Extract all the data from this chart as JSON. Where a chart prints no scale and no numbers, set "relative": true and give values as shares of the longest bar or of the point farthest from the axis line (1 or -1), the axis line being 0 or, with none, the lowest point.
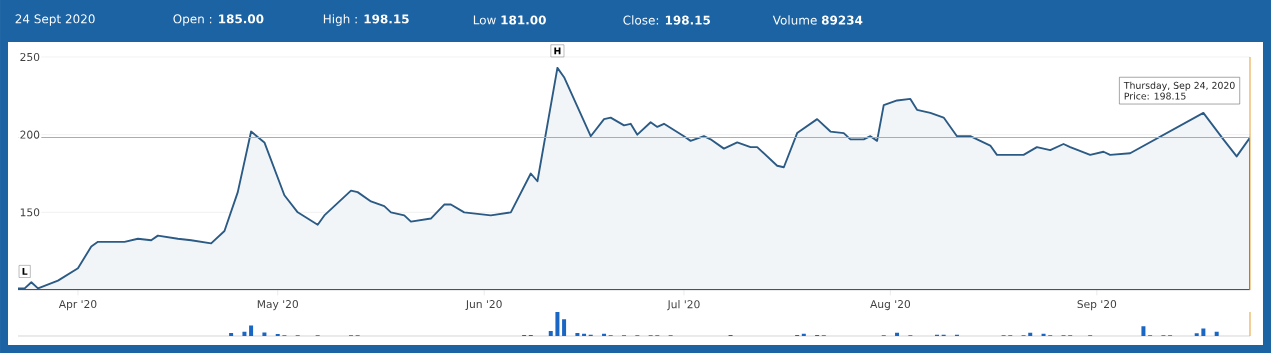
{
  "chart_data": [
    {
      "type": "area",
      "title": "24 Sept 2020",
      "annotations": [
        "Open : **185.00**",
        "High : **198.15**",
        "Low **181.00**",
        "Close: **198.15**",
        "Volume **89234**",
        {
          "text": "L",
          "x": "2020-03-24",
          "y": 101
        },
        {
          "text": "H",
          "x": "2020-06-12",
          "y": 243
        },
        "Thursday, Sep 24, 2020",
        "Price: 198.15"
      ],
      "x": [
        "2020-03-23",
        "2020-03-24",
        "2020-03-25",
        "2020-03-26",
        "2020-03-29",
        "2020-04-01",
        "2020-04-03",
        "2020-04-04",
        "2020-04-08",
        "2020-04-10",
        "2020-04-12",
        "2020-04-13",
        "2020-04-16",
        "2020-04-18",
        "2020-04-21",
        "2020-04-23",
        "2020-04-25",
        "2020-04-27",
        "2020-04-29",
        "2020-05-02",
        "2020-05-04",
        "2020-05-07",
        "2020-05-08",
        "2020-05-12",
        "2020-05-13",
        "2020-05-15",
        "2020-05-17",
        "2020-05-18",
        "2020-05-20",
        "2020-05-21",
        "2020-05-24",
        "2020-05-26",
        "2020-05-27",
        "2020-05-29",
        "2020-05-31",
        "2020-06-02",
        "2020-06-05",
        "2020-06-08",
        "2020-06-09",
        "2020-06-12",
        "2020-06-13",
        "2020-06-17",
        "2020-06-19",
        "2020-06-20",
        "2020-06-22",
        "2020-06-23",
        "2020-06-24",
        "2020-06-26",
        "2020-06-27",
        "2020-06-28",
        "2020-07-01",
        "2020-07-02",
        "2020-07-04",
        "2020-07-05",
        "2020-07-07",
        "2020-07-09",
        "2020-07-11",
        "2020-07-12",
        "2020-07-15",
        "2020-07-16",
        "2020-07-18",
        "2020-07-21",
        "2020-07-23",
        "2020-07-25",
        "2020-07-26",
        "2020-07-28",
        "2020-07-29",
        "2020-07-30",
        "2020-07-31",
        "2020-08-02",
        "2020-08-04",
        "2020-08-05",
        "2020-08-07",
        "2020-08-09",
        "2020-08-11",
        "2020-08-13",
        "2020-08-16",
        "2020-08-17",
        "2020-08-21",
        "2020-08-23",
        "2020-08-25",
        "2020-08-27",
        "2020-08-28",
        "2020-08-31",
        "2020-09-02",
        "2020-09-03",
        "2020-09-06",
        "2020-09-17",
        "2020-09-20",
        "2020-09-22",
        "2020-09-24"
      ],
      "values": [
        101,
        101,
        105,
        101,
        106,
        114,
        128,
        131,
        131,
        133,
        132,
        135,
        133,
        132,
        130,
        138,
        163,
        202,
        195,
        161,
        150,
        142,
        148,
        164,
        163,
        157,
        154,
        150,
        148,
        144,
        146,
        155,
        155,
        150,
        149,
        148,
        150,
        175,
        170,
        243,
        237,
        199,
        210,
        211,
        206,
        207,
        200,
        208,
        205,
        207,
        199,
        196,
        199,
        197,
        191,
        195,
        192,
        192,
        180,
        179,
        201,
        210,
        202,
        201,
        197,
        197,
        199,
        196,
        219,
        222,
        223,
        216,
        214,
        211,
        199,
        199,
        193,
        187,
        187,
        192,
        190,
        194,
        192,
        187,
        189,
        187,
        188,
        214,
        197,
        186,
        198.15
      ],
      "color": "#2b5a84",
      "xlim": [
        "2020-03-23",
        "2020-09-24"
      ],
      "xticks": [
        {
          "value": "2020-04-01",
          "label": "Apr '20"
        },
        {
          "value": "2020-05-01",
          "label": "May '20"
        },
        {
          "value": "2020-06-01",
          "label": "Jun '20"
        },
        {
          "value": "2020-07-01",
          "label": "Jul '20"
        },
        {
          "value": "2020-08-01",
          "label": "Aug '20"
        },
        {
          "value": "2020-09-01",
          "label": "Sep '20"
        }
      ],
      "ylim": [
        100,
        250
      ],
      "yticks": [
        150,
        200,
        250
      ],
      "grid": "y",
      "ref_lines": [
        {
          "axis": "y",
          "value": 198.15,
          "color": "#e8a33d"
        },
        {
          "axis": "x",
          "value": "2020-09-24",
          "color": "#e8a33d"
        }
      ]
    },
    {
      "type": "bar",
      "relative": true,
      "tick_labels": false,
      "color": "#1a66c4",
      "x": [
        "2020-04-24",
        "2020-04-26",
        "2020-04-27",
        "2020-04-29",
        "2020-05-01",
        "2020-05-02",
        "2020-05-04",
        "2020-05-07",
        "2020-05-12",
        "2020-05-13",
        "2020-06-07",
        "2020-06-08",
        "2020-06-11",
        "2020-06-12",
        "2020-06-13",
        "2020-06-15",
        "2020-06-16",
        "2020-06-17",
        "2020-06-19",
        "2020-06-20",
        "2020-06-22",
        "2020-06-24",
        "2020-06-26",
        "2020-06-27",
        "2020-06-29",
        "2020-07-08",
        "2020-07-18",
        "2020-07-19",
        "2020-07-21",
        "2020-07-22",
        "2020-07-31",
        "2020-08-02",
        "2020-08-04",
        "2020-08-08",
        "2020-08-09",
        "2020-08-11",
        "2020-08-18",
        "2020-08-19",
        "2020-08-21",
        "2020-08-22",
        "2020-08-24",
        "2020-08-25",
        "2020-08-27",
        "2020-08-28",
        "2020-08-31",
        "2020-09-08",
        "2020-09-09",
        "2020-09-11",
        "2020-09-12",
        "2020-09-16",
        "2020-09-17",
        "2020-09-19"
      ],
      "values": [
        0.12,
        0.18,
        0.44,
        0.15,
        0.08,
        0.03,
        0.03,
        0.03,
        0.03,
        0.03,
        0.04,
        0.04,
        0.21,
        1,
        0.7,
        0.12,
        0.09,
        0.05,
        0.09,
        0.03,
        0.03,
        0.03,
        0.03,
        0.03,
        0.03,
        0.04,
        0.04,
        0.09,
        0.04,
        0.03,
        0.03,
        0.13,
        0.03,
        0.05,
        0.05,
        0.05,
        0.03,
        0.03,
        0.03,
        0.13,
        0.09,
        0.03,
        0.03,
        0.03,
        0.03,
        0.41,
        0.03,
        0.03,
        0.03,
        0.11,
        0.31,
        0.18
      ],
      "xlim": [
        "2020-03-23",
        "2020-09-24"
      ],
      "ref_lines": [
        {
          "axis": "x",
          "value": "2020-09-24",
          "color": "#e8a33d"
        }
      ]
    }
  ]
}
